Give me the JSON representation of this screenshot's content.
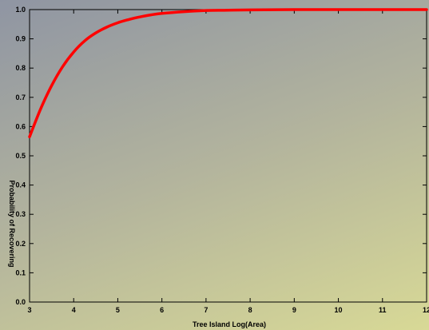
{
  "chart_data": {
    "type": "line",
    "title": "",
    "xlabel": "Tree Island Log(Area)",
    "ylabel": "Probability of Recovering",
    "xlim": [
      3,
      12
    ],
    "ylim": [
      0,
      1
    ],
    "grid": false,
    "x_ticks": [
      "3",
      "4",
      "5",
      "6",
      "7",
      "8",
      "9",
      "10",
      "11",
      "12"
    ],
    "y_ticks": [
      "0.0",
      "0.1",
      "0.2",
      "0.3",
      "0.4",
      "0.5",
      "0.6",
      "0.7",
      "0.8",
      "0.9",
      "1.0"
    ],
    "series": [
      {
        "color": "#ff0000",
        "x": [
          3.0,
          3.25,
          3.5,
          3.75,
          4.0,
          4.25,
          4.5,
          4.75,
          5.0,
          5.25,
          5.5,
          5.75,
          6.0,
          6.5,
          7.0,
          7.5,
          8.0,
          9.0,
          10.0,
          11.0,
          12.0
        ],
        "y": [
          0.565,
          0.66,
          0.74,
          0.805,
          0.855,
          0.893,
          0.92,
          0.94,
          0.955,
          0.966,
          0.975,
          0.982,
          0.987,
          0.993,
          0.997,
          0.998,
          0.999,
          1.0,
          1.0,
          1.0,
          1.0
        ]
      }
    ]
  }
}
